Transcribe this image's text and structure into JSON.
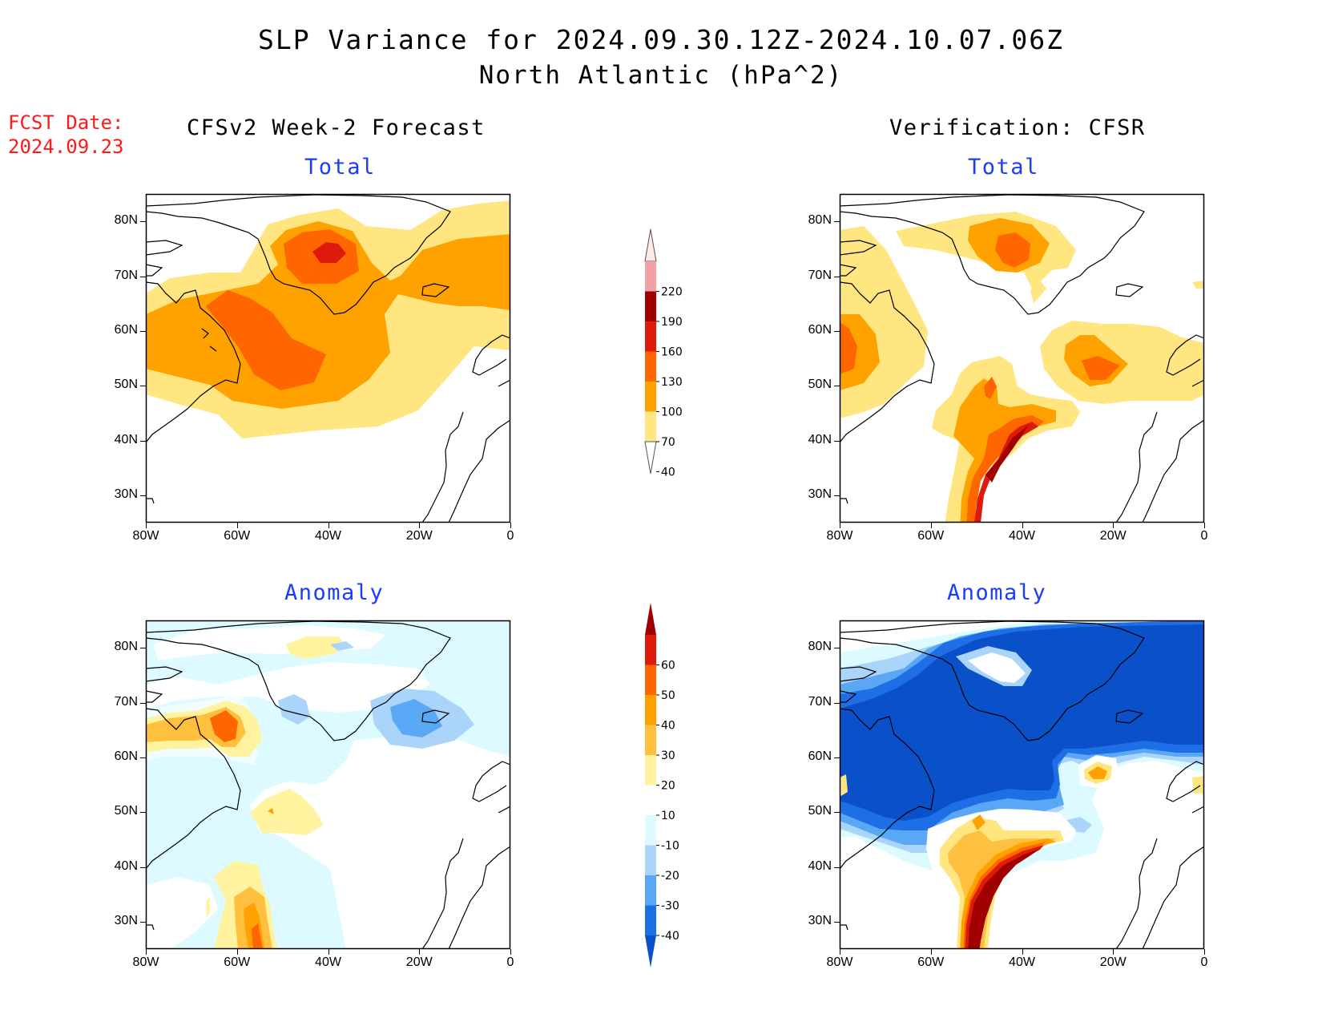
{
  "header": {
    "title_line1": "SLP Variance for 2024.09.30.12Z-2024.10.07.06Z",
    "title_line2": "North Atlantic (hPa^2)"
  },
  "fcst_date": {
    "label": "FCST Date:",
    "value": "2024.09.23"
  },
  "columns": {
    "left_title": "CFSv2 Week-2 Forecast",
    "right_title": "Verification: CFSR"
  },
  "panels": {
    "top_left": {
      "subtitle": "Total"
    },
    "top_right": {
      "subtitle": "Total"
    },
    "bottom_left": {
      "subtitle": "Anomaly"
    },
    "bottom_right": {
      "subtitle": "Anomaly"
    }
  },
  "axes": {
    "lat_labels": [
      "80N",
      "70N",
      "60N",
      "50N",
      "40N",
      "30N"
    ],
    "lon_labels": [
      "80W",
      "60W",
      "40W",
      "20W",
      "0"
    ],
    "lat_range": [
      25,
      85
    ],
    "lon_range": [
      -80,
      0
    ]
  },
  "colorbar_total": {
    "levels": [
      "220",
      "190",
      "160",
      "130",
      "100",
      "70",
      "40"
    ],
    "colors": [
      "#ffe8e8",
      "#f2a0a4",
      "#a00000",
      "#de1a0c",
      "#ff6600",
      "#ffa200",
      "#ffe680"
    ]
  },
  "colorbar_anomaly": {
    "levels": [
      "60",
      "50",
      "40",
      "30",
      "20",
      "10",
      "-10",
      "-20",
      "-30",
      "-40"
    ],
    "colors": [
      "#a00000",
      "#de1a0c",
      "#ff6600",
      "#ffa200",
      "#ffc040",
      "#fff3a0",
      "#ffffff",
      "#dcfaff",
      "#aad4fa",
      "#5aa8f5",
      "#1e6ee6",
      "#0a50c8"
    ]
  }
}
